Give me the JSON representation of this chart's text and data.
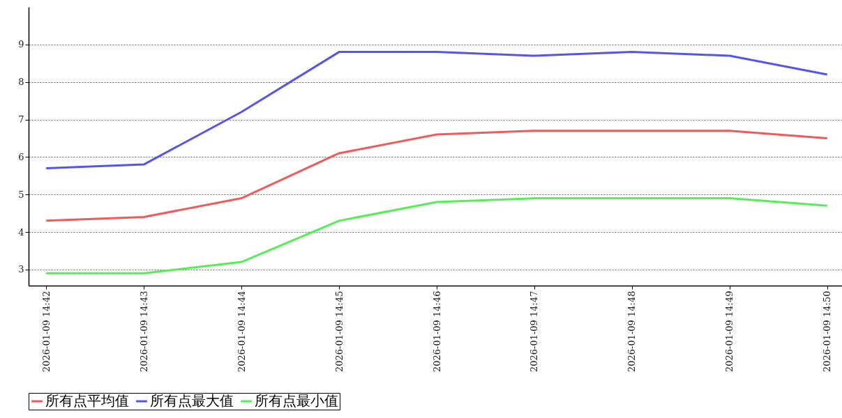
{
  "chart_data": {
    "type": "line",
    "categories": [
      "2026-01-09 14:42",
      "2026-01-09 14:43",
      "2026-01-09 14:44",
      "2026-01-09 14:45",
      "2026-01-09 14:46",
      "2026-01-09 14:47",
      "2026-01-09 14:48",
      "2026-01-09 14:49",
      "2026-01-09 14:50"
    ],
    "series": [
      {
        "name": "所有点平均值",
        "color": "#f05a5a",
        "values": [
          4.3,
          4.4,
          4.9,
          6.1,
          6.6,
          6.7,
          6.7,
          6.7,
          6.5
        ]
      },
      {
        "name": "所有点最大值",
        "color": "#5555ee",
        "values": [
          5.7,
          5.8,
          7.2,
          8.8,
          8.8,
          8.7,
          8.8,
          8.7,
          8.2
        ]
      },
      {
        "name": "所有点最小值",
        "color": "#55ee55",
        "values": [
          2.9,
          2.9,
          3.2,
          4.3,
          4.8,
          4.9,
          4.9,
          4.9,
          4.7
        ]
      }
    ],
    "ylim": [
      2.57,
      10
    ],
    "yticks": [
      3,
      4,
      5,
      6,
      7,
      8,
      9
    ],
    "grid": "y",
    "legend": "bottom",
    "marker": "none",
    "line_style": "solid"
  }
}
